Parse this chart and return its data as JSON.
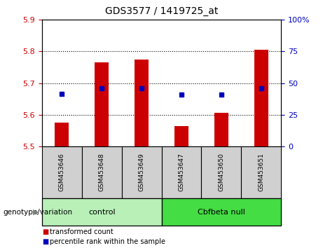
{
  "title": "GDS3577 / 1419725_at",
  "samples": [
    "GSM453646",
    "GSM453648",
    "GSM453649",
    "GSM453647",
    "GSM453650",
    "GSM453651"
  ],
  "bar_tops": [
    5.575,
    5.765,
    5.775,
    5.565,
    5.605,
    5.805
  ],
  "bar_bottom": 5.5,
  "blue_dot_values": [
    5.665,
    5.683,
    5.683,
    5.663,
    5.663,
    5.683
  ],
  "ylim_left": [
    5.5,
    5.9
  ],
  "ylim_right": [
    0,
    100
  ],
  "yticks_left": [
    5.5,
    5.6,
    5.7,
    5.8,
    5.9
  ],
  "yticks_right": [
    0,
    25,
    50,
    75,
    100
  ],
  "ytick_labels_right": [
    "0",
    "25",
    "50",
    "75",
    "100%"
  ],
  "bar_color": "#cc0000",
  "dot_color": "#0000bb",
  "left_tick_color": "#cc0000",
  "right_tick_color": "#0000bb",
  "groups": [
    {
      "label": "control",
      "indices": [
        0,
        1,
        2
      ],
      "color": "#b8f0b8"
    },
    {
      "label": "Cbfbeta null",
      "indices": [
        3,
        4,
        5
      ],
      "color": "#44dd44"
    }
  ],
  "group_label_prefix": "genotype/variation",
  "legend_items": [
    {
      "label": "transformed count",
      "color": "#cc0000"
    },
    {
      "label": "percentile rank within the sample",
      "color": "#0000bb"
    }
  ],
  "xlabel_area_color": "#d0d0d0",
  "title_fontsize": 10
}
